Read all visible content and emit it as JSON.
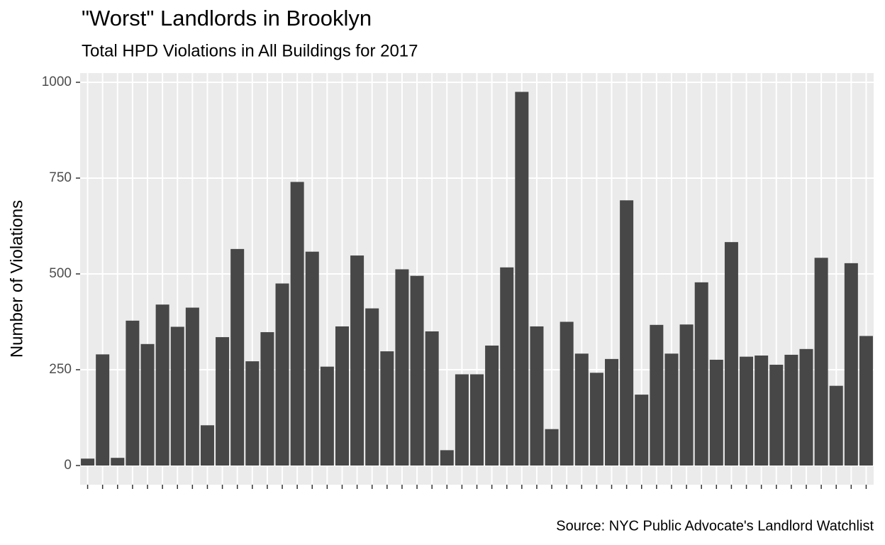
{
  "chart_data": {
    "type": "bar",
    "title": "\"Worst\" Landlords in Brooklyn",
    "subtitle": "Total HPD Violations in All Buildings for 2017",
    "y_label": "Number of Violations",
    "caption": "Source: NYC Public Advocate's Landlord Watchlist",
    "categories": [
      null,
      null,
      null,
      null,
      null,
      null,
      null,
      null,
      null,
      null,
      null,
      null,
      null,
      null,
      null,
      null,
      null,
      null,
      null,
      null,
      null,
      null,
      null,
      null,
      null,
      null,
      null,
      null,
      null,
      null,
      null,
      null,
      null,
      null,
      null,
      null,
      null,
      null,
      null,
      null,
      null,
      null,
      null,
      null,
      null,
      null,
      null,
      null,
      null,
      null,
      null,
      null,
      null
    ],
    "values": [
      18,
      290,
      20,
      378,
      317,
      420,
      362,
      412,
      105,
      335,
      565,
      272,
      348,
      475,
      740,
      558,
      258,
      363,
      548,
      410,
      298,
      512,
      495,
      350,
      40,
      238,
      238,
      313,
      517,
      975,
      363,
      95,
      375,
      292,
      242,
      278,
      692,
      185,
      367,
      292,
      368,
      478,
      276,
      583,
      284,
      287,
      263,
      289,
      304,
      542,
      208,
      528,
      338
    ],
    "color": "#474747",
    "ylim": [
      -50,
      1024
    ],
    "yticks": [
      0,
      250,
      500,
      750,
      1000
    ],
    "grid": true
  }
}
